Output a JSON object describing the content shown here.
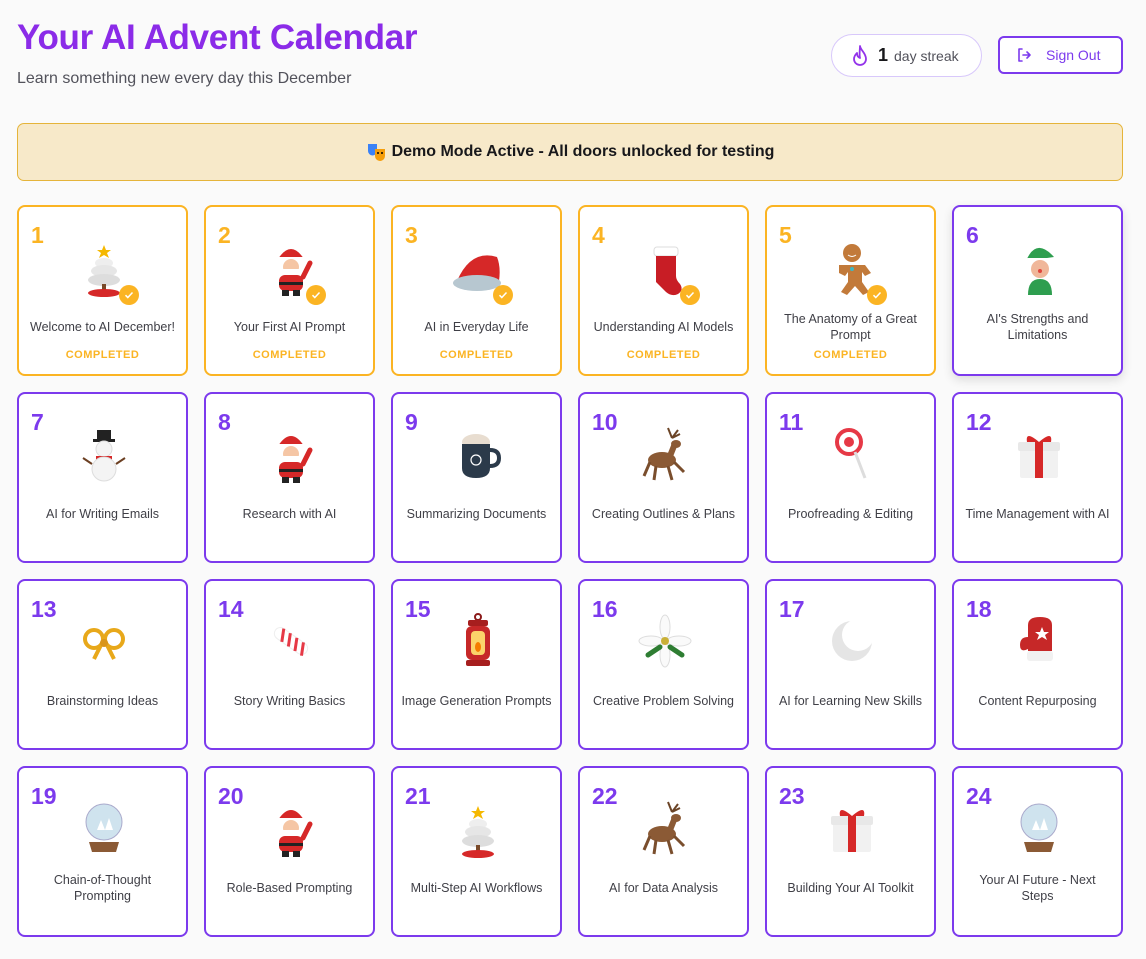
{
  "header": {
    "title": "Your AI Advent Calendar",
    "subtitle": "Learn something new every day this December"
  },
  "streak": {
    "icon": "flame-icon",
    "count": "1",
    "label": "day streak"
  },
  "signout": {
    "icon": "sign-out-icon",
    "label": "Sign Out"
  },
  "banner": {
    "icon": "masks-icon",
    "text": "Demo Mode Active - All doors unlocked for testing"
  },
  "colors": {
    "accent": "#7c3aed",
    "title": "#8b2be8",
    "completed": "#fbb423",
    "banner_bg": "#f7e9c9"
  },
  "completed_label": "COMPLETED",
  "doors": [
    {
      "day": "1",
      "title": "Welcome to AI December!",
      "icon": "tree",
      "completed": true
    },
    {
      "day": "2",
      "title": "Your First AI Prompt",
      "icon": "santa",
      "completed": true
    },
    {
      "day": "3",
      "title": "AI in Everyday Life",
      "icon": "santa-hat",
      "completed": true
    },
    {
      "day": "4",
      "title": "Understanding AI Models",
      "icon": "stocking",
      "completed": true
    },
    {
      "day": "5",
      "title": "The Anatomy of a Great Prompt",
      "icon": "gingerbread",
      "completed": true
    },
    {
      "day": "6",
      "title": "AI's Strengths and Limitations",
      "icon": "elf",
      "completed": false
    },
    {
      "day": "7",
      "title": "AI for Writing Emails",
      "icon": "snowman",
      "completed": false
    },
    {
      "day": "8",
      "title": "Research with AI",
      "icon": "santa",
      "completed": false
    },
    {
      "day": "9",
      "title": "Summarizing Documents",
      "icon": "cocoa-mug",
      "completed": false
    },
    {
      "day": "10",
      "title": "Creating Outlines & Plans",
      "icon": "reindeer",
      "completed": false
    },
    {
      "day": "11",
      "title": "Proofreading & Editing",
      "icon": "lollipop",
      "completed": false
    },
    {
      "day": "12",
      "title": "Time Management with AI",
      "icon": "gift",
      "completed": false
    },
    {
      "day": "13",
      "title": "Brainstorming Ideas",
      "icon": "bow",
      "completed": false
    },
    {
      "day": "14",
      "title": "Story Writing Basics",
      "icon": "candy",
      "completed": false
    },
    {
      "day": "15",
      "title": "Image Generation Prompts",
      "icon": "lantern",
      "completed": false
    },
    {
      "day": "16",
      "title": "Creative Problem Solving",
      "icon": "poinsettia",
      "completed": false
    },
    {
      "day": "17",
      "title": "AI for Learning New Skills",
      "icon": "moon",
      "completed": false
    },
    {
      "day": "18",
      "title": "Content Repurposing",
      "icon": "mitten",
      "completed": false
    },
    {
      "day": "19",
      "title": "Chain-of-Thought Prompting",
      "icon": "snow-globe",
      "completed": false
    },
    {
      "day": "20",
      "title": "Role-Based Prompting",
      "icon": "santa",
      "completed": false
    },
    {
      "day": "21",
      "title": "Multi-Step AI Workflows",
      "icon": "tree",
      "completed": false
    },
    {
      "day": "22",
      "title": "AI for Data Analysis",
      "icon": "reindeer",
      "completed": false
    },
    {
      "day": "23",
      "title": "Building Your AI Toolkit",
      "icon": "gift",
      "completed": false
    },
    {
      "day": "24",
      "title": "Your AI Future - Next Steps",
      "icon": "snow-globe",
      "completed": false
    }
  ]
}
